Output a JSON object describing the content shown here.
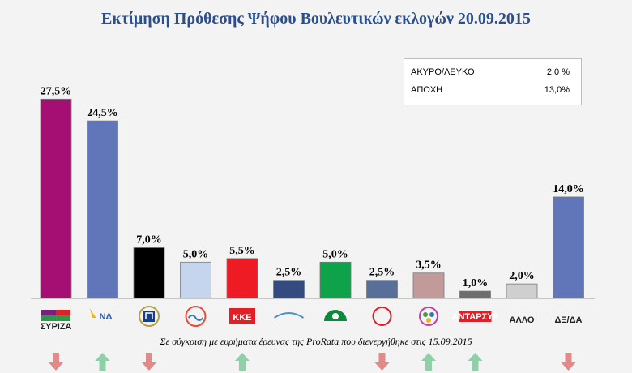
{
  "title": "Εκτίμηση Πρόθεσης Ψήφου Βουλευτικών εκλογών 20.09.2015",
  "info_box": {
    "rows": [
      {
        "label": "ΑΚΥΡΟ/ΛΕΥΚΟ",
        "value": "2,0 %"
      },
      {
        "label": "ΑΠΟΧΗ",
        "value": "13,0%"
      }
    ]
  },
  "footnote": "Σε σύγκριση με ευρήματα έρευνας της ProRata που διενεργήθηκε στις 15.09.2015",
  "colors": {
    "arrow_up": "#8fd0a8",
    "arrow_down": "#e08a8a",
    "arrow_neutral": "#a87e7e"
  },
  "chart_data": {
    "type": "bar",
    "categories": [
      "ΣΥΡΙΖΑ",
      "ΝΔ",
      "",
      "",
      "ΚΚΕ",
      "",
      "",
      "",
      "",
      "ΑΝΤΑΡΣΥΑ",
      "ΑΛΛΟ",
      "ΔΞ/ΔΑ"
    ],
    "values": [
      27.5,
      24.5,
      7.0,
      5.0,
      5.5,
      2.5,
      5.0,
      2.5,
      3.5,
      1.0,
      2.0,
      14.0
    ],
    "value_labels": [
      "27,5%",
      "24,5%",
      "7,0%",
      "5,0%",
      "5,5%",
      "2,5%",
      "5,0%",
      "2,5%",
      "3,5%",
      "1,0%",
      "2,0%",
      "14,0%"
    ],
    "bar_colors": [
      "#a50f73",
      "#6076b8",
      "#000000",
      "#c5d5ee",
      "#ee1b24",
      "#334b80",
      "#0ea24a",
      "#586f99",
      "#c39a9a",
      "#6d6d6d",
      "#cfcfcf",
      "#6076b8"
    ],
    "logo_icons": [
      "syriza-flag-icon",
      "nd-torch-icon",
      "golden-dawn-meander-icon",
      "potami-wave-icon",
      "kke-logo-icon",
      "anel-logo-icon",
      "pasok-sun-icon",
      "lae-logo-icon",
      "enosi-kentroon-logo-icon",
      "antarsya-logo-icon",
      "",
      ""
    ],
    "trend": [
      "down",
      "up",
      "down",
      "",
      "up",
      "",
      "",
      "down",
      "up",
      "up",
      "",
      "down"
    ],
    "ylim": [
      0,
      30
    ],
    "xlabel": "",
    "ylabel": "",
    "grid": false,
    "legend": "none"
  }
}
